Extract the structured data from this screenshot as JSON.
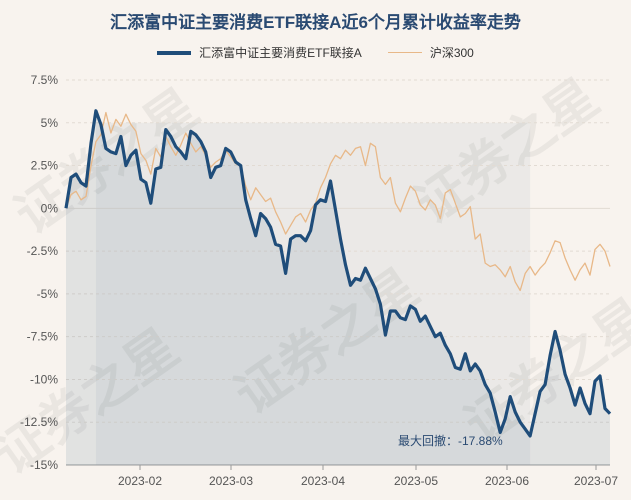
{
  "colors": {
    "etf": "#1f4d7a",
    "csi300": "#e8b888",
    "area_fill": "rgba(31,77,122,0.10)",
    "grid": "#e2dbd3"
  },
  "chart_data": {
    "type": "line",
    "title": "汇添富中证主要消费ETF联接A近6个月累计收益率走势",
    "xlabel": "",
    "ylabel": "",
    "ylim": [
      -15,
      7.5
    ],
    "yticks": [
      7.5,
      5,
      2.5,
      0,
      -2.5,
      -5,
      -7.5,
      -10,
      -12.5,
      -15
    ],
    "ytick_labels": [
      "7.5%",
      "5%",
      "2.5%",
      "0%",
      "-2.5%",
      "-5%",
      "-7.5%",
      "-10%",
      "-12.5%",
      "-15%"
    ],
    "xticks": [
      "2023-02",
      "2023-03",
      "2023-04",
      "2023-05",
      "2023-06",
      "2023-07"
    ],
    "grid": true,
    "legend_position": "top-center",
    "series": [
      {
        "name": "汇添富中证主要消费ETF联接A",
        "values": [
          0.0,
          1.8,
          2.0,
          1.5,
          1.3,
          3.8,
          5.7,
          4.9,
          3.5,
          3.3,
          3.2,
          4.2,
          2.5,
          3.1,
          3.4,
          1.7,
          1.5,
          0.3,
          2.3,
          2.4,
          4.6,
          4.2,
          3.6,
          3.3,
          2.9,
          4.5,
          4.3,
          3.9,
          3.3,
          1.8,
          2.4,
          2.5,
          3.5,
          3.3,
          2.7,
          2.5,
          0.5,
          -0.6,
          -1.6,
          -0.3,
          -0.6,
          -1.1,
          -2.1,
          -2.2,
          -3.8,
          -1.8,
          -1.6,
          -1.6,
          -1.9,
          -1.3,
          0.2,
          0.5,
          0.4,
          1.6,
          -0.1,
          -1.8,
          -3.3,
          -4.5,
          -4.1,
          -4.2,
          -3.5,
          -4.1,
          -4.7,
          -5.6,
          -7.4,
          -6.0,
          -6.0,
          -6.4,
          -6.5,
          -5.7,
          -5.9,
          -6.6,
          -6.3,
          -6.9,
          -7.5,
          -7.3,
          -8.0,
          -8.5,
          -9.3,
          -9.4,
          -8.5,
          -9.5,
          -9.1,
          -9.5,
          -10.3,
          -10.8,
          -11.9,
          -13.1,
          -12.3,
          -11.0,
          -11.9,
          -12.5,
          -12.9,
          -13.3,
          -12.0,
          -10.7,
          -10.3,
          -8.6,
          -7.2,
          -8.3,
          -9.7,
          -10.5,
          -11.5,
          -10.5,
          -11.4,
          -12.0,
          -10.1,
          -9.8,
          -11.7,
          -12.0
        ]
      },
      {
        "name": "沪深300",
        "values": [
          0.0,
          0.8,
          1.0,
          0.5,
          0.7,
          2.5,
          3.9,
          4.3,
          5.6,
          4.4,
          5.2,
          4.8,
          5.5,
          4.9,
          4.5,
          3.2,
          2.8,
          2.0,
          3.5,
          3.0,
          4.2,
          3.6,
          3.1,
          3.7,
          4.4,
          3.8,
          3.3,
          3.6,
          3.1,
          2.4,
          2.7,
          2.9,
          3.4,
          3.0,
          2.6,
          2.5,
          1.3,
          0.5,
          1.2,
          0.8,
          0.4,
          0.6,
          -0.2,
          -0.8,
          -1.5,
          -1.0,
          -0.5,
          -0.3,
          -0.8,
          -0.1,
          0.3,
          1.2,
          1.8,
          2.6,
          3.1,
          2.9,
          3.4,
          3.1,
          3.5,
          3.6,
          2.5,
          3.8,
          3.6,
          1.8,
          1.4,
          1.8,
          0.3,
          -0.2,
          0.6,
          1.3,
          1.0,
          0.2,
          -0.1,
          0.5,
          0.2,
          -0.6,
          0.9,
          1.1,
          0.3,
          -0.5,
          -0.3,
          0.1,
          -1.8,
          -1.5,
          -3.2,
          -3.4,
          -3.3,
          -3.6,
          -4.0,
          -3.4,
          -4.3,
          -4.8,
          -3.8,
          -3.4,
          -3.9,
          -3.5,
          -3.2,
          -2.6,
          -1.9,
          -2.0,
          -2.9,
          -3.6,
          -4.2,
          -3.6,
          -3.2,
          -3.9,
          -2.4,
          -2.1,
          -2.5,
          -3.4
        ]
      }
    ],
    "annotation": "最大回撤：-17.88%"
  },
  "watermarks": [
    "证券之星",
    "证券之星",
    "证券之星",
    "证券之星",
    "证券之星"
  ]
}
